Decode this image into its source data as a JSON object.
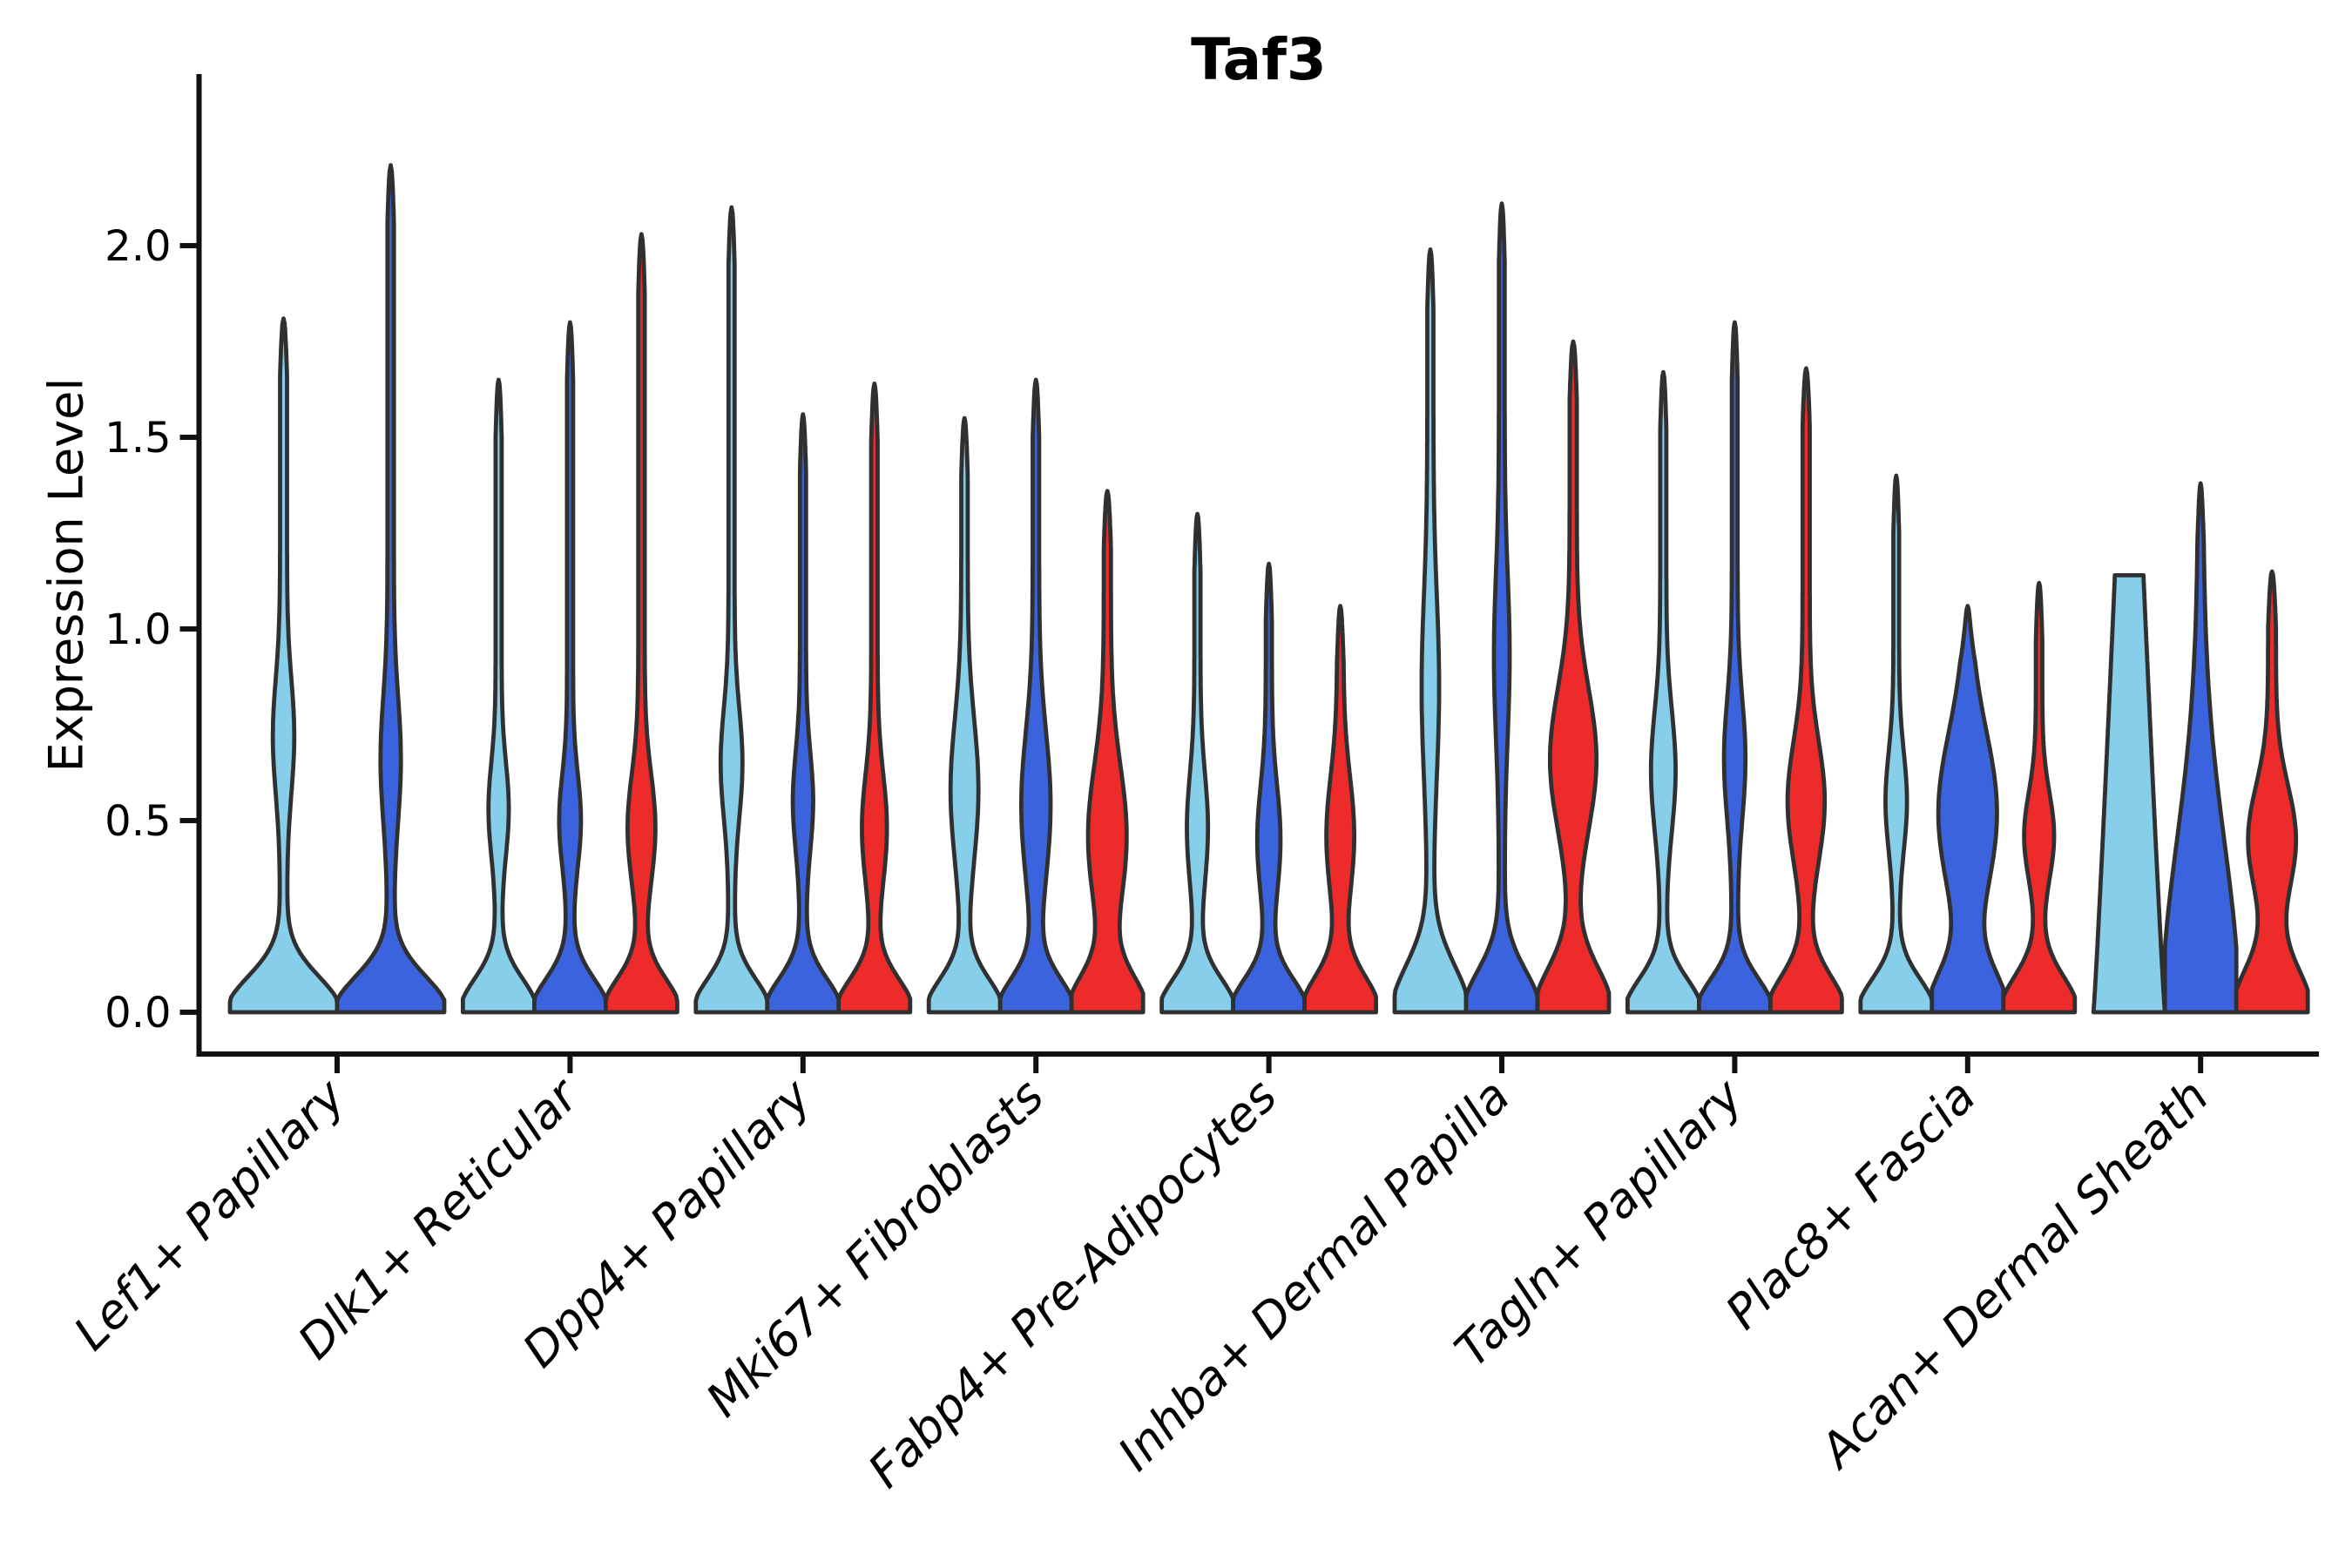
{
  "title": "Taf3",
  "chart_data": {
    "type": "violin",
    "title": "Taf3",
    "ylabel": "Expression Level",
    "xlabel": "",
    "grid": false,
    "legend_position": "none",
    "y_ticks": [
      0.0,
      0.5,
      1.0,
      1.5,
      2.0
    ],
    "y_tick_labels": [
      "0.0",
      "0.5",
      "1.0",
      "1.5",
      "2.0"
    ],
    "ylim": [
      0,
      2.45
    ],
    "categories": [
      "Lef1+ Papillary",
      "Dlk1+ Reticular",
      "Dpp4+ Papillary",
      "Mki67+ Fibroblasts",
      "Fabp4+ Pre-Adipocytes",
      "Inhba+ Dermal Papilla",
      "Tagln+ Papillary",
      "Plac8+ Fascia",
      "Acan+ Dermal Sheath"
    ],
    "palette": {
      "light_blue": "#87CEEB",
      "royal_blue": "#3C63DE",
      "red": "#EE2B2B"
    },
    "outline_color": "#303030",
    "axis_color": "#111111",
    "text_color": "#000000",
    "groups": [
      {
        "category": "Lef1+ Papillary",
        "violins": [
          {
            "series": "light_blue",
            "max_expression": 1.81,
            "bulge_center": 0.72,
            "bulge_width": 0.21,
            "bulge_amp": 0.135,
            "base_height": 0.13,
            "stem_width": 0.065
          },
          {
            "series": "royal_blue",
            "max_expression": 2.21,
            "bulge_center": 0.66,
            "bulge_width": 0.23,
            "bulge_amp": 0.13,
            "base_height": 0.13,
            "stem_width": 0.06
          }
        ]
      },
      {
        "category": "Dlk1+ Reticular",
        "violins": [
          {
            "series": "light_blue",
            "max_expression": 1.65,
            "bulge_center": 0.53,
            "bulge_width": 0.17,
            "bulge_amp": 0.2,
            "base_height": 0.12,
            "stem_width": 0.085
          },
          {
            "series": "royal_blue",
            "max_expression": 1.8,
            "bulge_center": 0.5,
            "bulge_width": 0.17,
            "bulge_amp": 0.22,
            "base_height": 0.12,
            "stem_width": 0.085
          },
          {
            "series": "red",
            "max_expression": 2.03,
            "bulge_center": 0.48,
            "bulge_width": 0.2,
            "bulge_amp": 0.3,
            "base_height": 0.12,
            "stem_width": 0.09
          }
        ]
      },
      {
        "category": "Dpp4+ Papillary",
        "violins": [
          {
            "series": "light_blue",
            "max_expression": 2.1,
            "bulge_center": 0.65,
            "bulge_width": 0.2,
            "bulge_amp": 0.22,
            "base_height": 0.12,
            "stem_width": 0.085
          },
          {
            "series": "royal_blue",
            "max_expression": 1.56,
            "bulge_center": 0.55,
            "bulge_width": 0.18,
            "bulge_amp": 0.2,
            "base_height": 0.12,
            "stem_width": 0.085
          },
          {
            "series": "red",
            "max_expression": 1.64,
            "bulge_center": 0.48,
            "bulge_width": 0.2,
            "bulge_amp": 0.26,
            "base_height": 0.12,
            "stem_width": 0.09
          }
        ]
      },
      {
        "category": "Mki67+ Fibroblasts",
        "violins": [
          {
            "series": "light_blue",
            "max_expression": 1.55,
            "bulge_center": 0.58,
            "bulge_width": 0.26,
            "bulge_amp": 0.3,
            "base_height": 0.12,
            "stem_width": 0.09
          },
          {
            "series": "royal_blue",
            "max_expression": 1.65,
            "bulge_center": 0.54,
            "bulge_width": 0.27,
            "bulge_amp": 0.32,
            "base_height": 0.12,
            "stem_width": 0.09
          },
          {
            "series": "red",
            "max_expression": 1.36,
            "bulge_center": 0.46,
            "bulge_width": 0.26,
            "bulge_amp": 0.44,
            "base_height": 0.13,
            "stem_width": 0.1
          }
        ]
      },
      {
        "category": "Fabp4+ Pre-Adipocytes",
        "violins": [
          {
            "series": "light_blue",
            "max_expression": 1.3,
            "bulge_center": 0.48,
            "bulge_width": 0.2,
            "bulge_amp": 0.21,
            "base_height": 0.12,
            "stem_width": 0.085
          },
          {
            "series": "royal_blue",
            "max_expression": 1.17,
            "bulge_center": 0.45,
            "bulge_width": 0.2,
            "bulge_amp": 0.24,
            "base_height": 0.12,
            "stem_width": 0.085
          },
          {
            "series": "red",
            "max_expression": 1.06,
            "bulge_center": 0.46,
            "bulge_width": 0.22,
            "bulge_amp": 0.3,
            "base_height": 0.13,
            "stem_width": 0.09
          }
        ]
      },
      {
        "category": "Inhba+ Dermal Papilla",
        "violins": [
          {
            "series": "light_blue",
            "max_expression": 1.99,
            "bulge_center": 0.85,
            "bulge_width": 0.33,
            "bulge_amp": 0.16,
            "base_height": 0.17,
            "stem_width": 0.085
          },
          {
            "series": "royal_blue",
            "max_expression": 2.11,
            "bulge_center": 0.93,
            "bulge_width": 0.3,
            "bulge_amp": 0.14,
            "base_height": 0.15,
            "stem_width": 0.08
          },
          {
            "series": "red",
            "max_expression": 1.75,
            "bulge_center": 0.66,
            "bulge_width": 0.26,
            "bulge_amp": 0.55,
            "base_height": 0.16,
            "stem_width": 0.1
          }
        ]
      },
      {
        "category": "Tagln+ Papillary",
        "violins": [
          {
            "series": "light_blue",
            "max_expression": 1.67,
            "bulge_center": 0.63,
            "bulge_width": 0.22,
            "bulge_amp": 0.26,
            "base_height": 0.12,
            "stem_width": 0.085
          },
          {
            "series": "royal_blue",
            "max_expression": 1.8,
            "bulge_center": 0.66,
            "bulge_width": 0.22,
            "bulge_amp": 0.22,
            "base_height": 0.12,
            "stem_width": 0.08
          },
          {
            "series": "red",
            "max_expression": 1.68,
            "bulge_center": 0.55,
            "bulge_width": 0.22,
            "bulge_amp": 0.42,
            "base_height": 0.13,
            "stem_width": 0.1
          }
        ]
      },
      {
        "category": "Plac8+ Fascia",
        "violins": [
          {
            "series": "light_blue",
            "max_expression": 1.4,
            "bulge_center": 0.55,
            "bulge_width": 0.18,
            "bulge_amp": 0.22,
            "base_height": 0.12,
            "stem_width": 0.08
          },
          {
            "series": "royal_blue",
            "max_expression": 1.06,
            "bulge_center": 0.52,
            "bulge_width": 0.3,
            "bulge_amp": 0.74,
            "base_height": 0.15,
            "stem_width": 0.08
          },
          {
            "series": "red",
            "max_expression": 1.12,
            "bulge_center": 0.46,
            "bulge_width": 0.16,
            "bulge_amp": 0.33,
            "base_height": 0.13,
            "stem_width": 0.09
          }
        ]
      },
      {
        "category": "Acan+ Dermal Sheath",
        "violins": [
          {
            "series": "light_blue",
            "max_expression": 1.14,
            "shape": "trapezoid",
            "taper": 0.6,
            "flat_top": true
          },
          {
            "series": "royal_blue",
            "max_expression": 1.38,
            "bulge_center": 0.0,
            "bulge_width": 1.0,
            "bulge_amp": 0.0,
            "base_height": 0.62,
            "stem_width": 0.07
          },
          {
            "series": "red",
            "max_expression": 1.15,
            "bulge_center": 0.45,
            "bulge_width": 0.2,
            "bulge_amp": 0.56,
            "base_height": 0.16,
            "stem_width": 0.11
          }
        ]
      }
    ]
  }
}
